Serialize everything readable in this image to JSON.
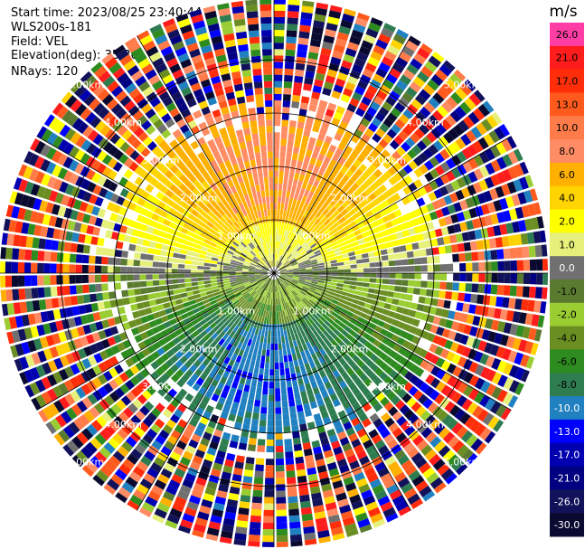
{
  "header": {
    "start_time_label": "Start time:",
    "start_time": "2023/08/25 23:40:44",
    "station": "WLS200s-181",
    "field_label": "Field:",
    "field": "VEL",
    "elevation_label": "Elevation(deg):",
    "elevation": "35.30",
    "nrays_label": "NRays:",
    "nrays": "120"
  },
  "colorbar": {
    "unit": "m/s",
    "ticks": [
      "26.0",
      "21.0",
      "17.0",
      "13.0",
      "10.0",
      "8.0",
      "6.0",
      "4.0",
      "2.0",
      "1.0",
      "0.0",
      "-1.0",
      "-2.0",
      "-4.0",
      "-6.0",
      "-8.0",
      "-10.0",
      "-13.0",
      "-17.0",
      "-21.0",
      "-26.0",
      "-30.0"
    ],
    "colors": [
      "#ff3ea5",
      "#ff1c1c",
      "#ff2d0a",
      "#ff5a1e",
      "#ff7b4a",
      "#ff8c64",
      "#ffb000",
      "#ffd400",
      "#ffff00",
      "#e6f07a",
      "#707070",
      "#5a7a30",
      "#9acd32",
      "#6b8e23",
      "#2e8b20",
      "#2e7d50",
      "#2080c0",
      "#0000ff",
      "#0000b0",
      "#000080",
      "#12125a",
      "#0a0a30"
    ]
  },
  "chart_data": {
    "type": "heatmap",
    "projection": "polar PPI",
    "field": "VEL",
    "unit": "m/s",
    "nrays": 120,
    "colorbar_range": [
      -30.0,
      26.0
    ],
    "range_rings_km": [
      1.0,
      2.0,
      3.0,
      4.0
    ],
    "range_ring_labels": [
      "1.00km",
      "2.00km",
      "3.00km",
      "4.00km",
      "5.00km"
    ],
    "spoke_angles_deg": [
      0,
      30,
      60,
      90,
      120,
      150
    ],
    "pattern": {
      "north_half": "positive 6 to 10 m/s near rings 2-3, yellow 2-4 m/s inner band",
      "near_zero_band": "grey around horizontal axis",
      "south_half": "negative -4 to -8 m/s, blue patch -10 m/s south-west",
      "outer_ring": "noisy multicolour beyond ~3.3km"
    }
  }
}
